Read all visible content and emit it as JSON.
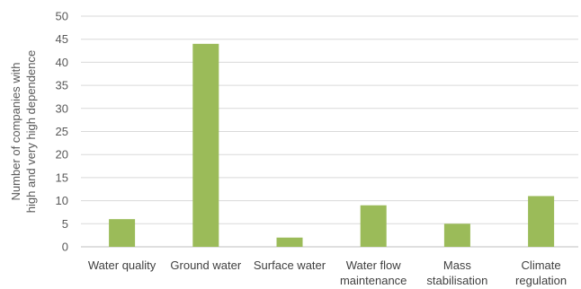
{
  "chart_data": {
    "type": "bar",
    "categories": [
      [
        "Water quality"
      ],
      [
        "Ground water"
      ],
      [
        "Surface water"
      ],
      [
        "Water flow",
        "maintenance"
      ],
      [
        "Mass",
        "stabilisation"
      ],
      [
        "Climate",
        "regulation"
      ]
    ],
    "values": [
      6,
      44,
      2,
      9,
      5,
      11
    ],
    "ylabel": [
      "Number of companies with",
      "high and very high dependence"
    ],
    "ylim": [
      0,
      50
    ],
    "yticks": [
      0,
      5,
      10,
      15,
      20,
      25,
      30,
      35,
      40,
      45,
      50
    ],
    "grid": true,
    "legend": "none",
    "bar_color": "#9bbb59"
  }
}
